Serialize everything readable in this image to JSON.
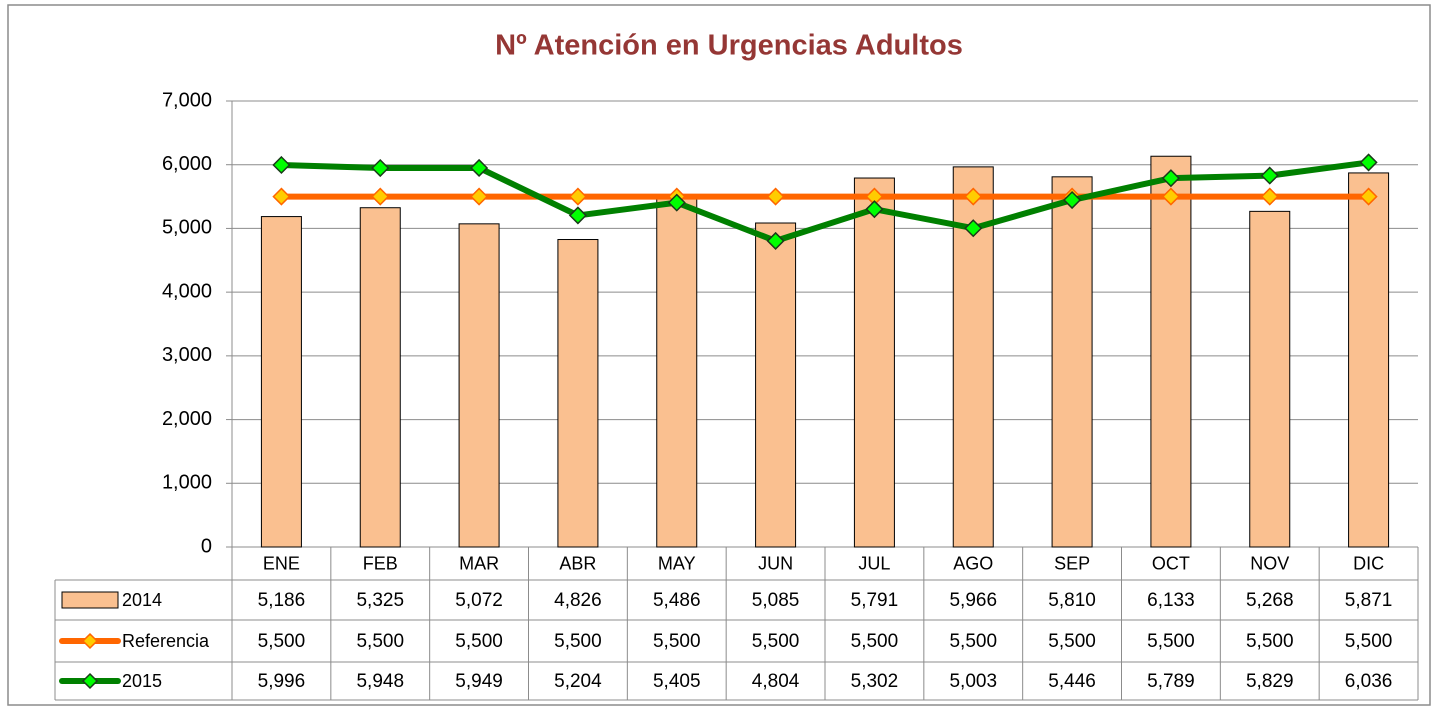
{
  "chart_data": {
    "type": "bar",
    "title": "Nº Atención en Urgencias Adultos",
    "categories": [
      "ENE",
      "FEB",
      "MAR",
      "ABR",
      "MAY",
      "JUN",
      "JUL",
      "AGO",
      "SEP",
      "OCT",
      "NOV",
      "DIC"
    ],
    "series": [
      {
        "name": "2014",
        "type": "bar",
        "color": "#fac090",
        "values": [
          5186,
          5325,
          5072,
          4826,
          5486,
          5085,
          5791,
          5966,
          5810,
          6133,
          5268,
          5871
        ],
        "value_labels": [
          "5,186",
          "5,325",
          "5,072",
          "4,826",
          "5,486",
          "5,085",
          "5,791",
          "5,966",
          "5,810",
          "6,133",
          "5,268",
          "5,871"
        ]
      },
      {
        "name": "Referencia",
        "type": "line",
        "color": "#ff6600",
        "marker_color": "#ffcc00",
        "values": [
          5500,
          5500,
          5500,
          5500,
          5500,
          5500,
          5500,
          5500,
          5500,
          5500,
          5500,
          5500
        ],
        "value_labels": [
          "5,500",
          "5,500",
          "5,500",
          "5,500",
          "5,500",
          "5,500",
          "5,500",
          "5,500",
          "5,500",
          "5,500",
          "5,500",
          "5,500"
        ]
      },
      {
        "name": "2015",
        "type": "line",
        "color": "#008000",
        "marker_color": "#00ff00",
        "values": [
          5996,
          5948,
          5949,
          5204,
          5405,
          4804,
          5302,
          5003,
          5446,
          5789,
          5829,
          6036
        ],
        "value_labels": [
          "5,996",
          "5,948",
          "5,949",
          "5,204",
          "5,405",
          "4,804",
          "5,302",
          "5,003",
          "5,446",
          "5,789",
          "5,829",
          "6,036"
        ]
      }
    ],
    "ylim": [
      0,
      7000
    ],
    "yticks": [
      0,
      {
        "value": 1000,
        "label": "1,000"
      },
      {
        "value": 2000,
        "label": "2,000"
      },
      {
        "value": 3000,
        "label": "3,000"
      },
      {
        "value": 4000,
        "label": "4,000"
      },
      {
        "value": 5000,
        "label": "5,000"
      },
      {
        "value": 6000,
        "label": "6,000"
      },
      {
        "value": 7000,
        "label": "7,000"
      }
    ],
    "grid": true
  }
}
